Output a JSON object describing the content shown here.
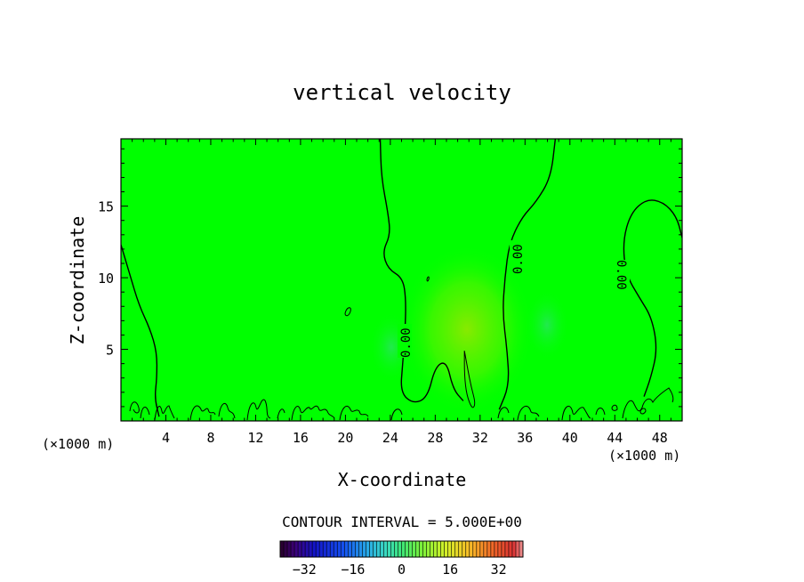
{
  "chart_data": {
    "type": "heatmap",
    "title": "vertical velocity",
    "xlabel": "X-coordinate",
    "ylabel": "Z-coordinate",
    "x_unit": "(×1000 m)",
    "y_unit": "(×1000 m)",
    "xlim": [
      0,
      50
    ],
    "ylim": [
      0,
      19.7
    ],
    "x_ticks": [
      4,
      8,
      12,
      16,
      20,
      24,
      28,
      32,
      36,
      40,
      44,
      48
    ],
    "y_ticks": [
      5,
      10,
      15
    ],
    "grid": false,
    "field_value_background": 0,
    "contour_interval_text": "CONTOUR INTERVAL = 5.000E+00",
    "contour_labels": [
      "0.00",
      "0.00",
      "0.00"
    ],
    "contour_lines": [
      {
        "level": 0,
        "points": [
          [
            0,
            12.3
          ],
          [
            0.8,
            10.2
          ],
          [
            1.6,
            8.1
          ],
          [
            2.6,
            6.4
          ],
          [
            3.2,
            4.8
          ],
          [
            3.2,
            3.0
          ],
          [
            3.0,
            1.6
          ],
          [
            3.4,
            0.3
          ]
        ]
      },
      {
        "level": 0,
        "points": [
          [
            23.1,
            19.7
          ],
          [
            23.2,
            17.0
          ],
          [
            23.8,
            14.5
          ],
          [
            24.0,
            13.0
          ],
          [
            23.3,
            11.8
          ],
          [
            23.8,
            10.6
          ],
          [
            25.1,
            10.0
          ],
          [
            25.4,
            8.5
          ],
          [
            25.3,
            6.0
          ],
          [
            25.1,
            4.0
          ],
          [
            24.9,
            2.0
          ],
          [
            26.0,
            1.2
          ],
          [
            27.3,
            1.6
          ],
          [
            28.0,
            3.8
          ],
          [
            29.0,
            4.2
          ],
          [
            29.6,
            2.2
          ],
          [
            30.5,
            1.4
          ]
        ]
      },
      {
        "level": 0,
        "points": [
          [
            38.7,
            19.7
          ],
          [
            38.3,
            17.0
          ],
          [
            37.0,
            15.3
          ],
          [
            35.7,
            14.2
          ],
          [
            34.6,
            12.4
          ],
          [
            34.2,
            10.0
          ],
          [
            34.0,
            7.5
          ],
          [
            34.4,
            5.0
          ],
          [
            34.6,
            2.5
          ],
          [
            33.7,
            0.8
          ]
        ]
      },
      {
        "level": 0,
        "points": [
          [
            50,
            12.8
          ],
          [
            49.5,
            14.3
          ],
          [
            48.3,
            15.3
          ],
          [
            46.8,
            15.5
          ],
          [
            45.4,
            14.5
          ],
          [
            44.7,
            12.5
          ],
          [
            45.0,
            10.2
          ],
          [
            46.2,
            8.6
          ],
          [
            47.3,
            7.2
          ],
          [
            47.8,
            5.0
          ],
          [
            47.2,
            3.0
          ],
          [
            46.6,
            1.7
          ]
        ]
      },
      {
        "level": 5,
        "points": [
          [
            30.6,
            4.9
          ],
          [
            30.9,
            3.6
          ],
          [
            31.2,
            2.4
          ],
          [
            31.6,
            1.2
          ],
          [
            31.3,
            0.8
          ],
          [
            30.8,
            1.8
          ],
          [
            30.6,
            3.2
          ],
          [
            30.6,
            4.9
          ]
        ]
      }
    ],
    "colorbar": {
      "ticks": [
        -32,
        -16,
        0,
        16,
        32
      ],
      "range": [
        -40,
        40
      ]
    },
    "colors": {
      "field": "#00ff00",
      "field_warm": "#88ee00",
      "field_cool": "#22ee66"
    }
  }
}
